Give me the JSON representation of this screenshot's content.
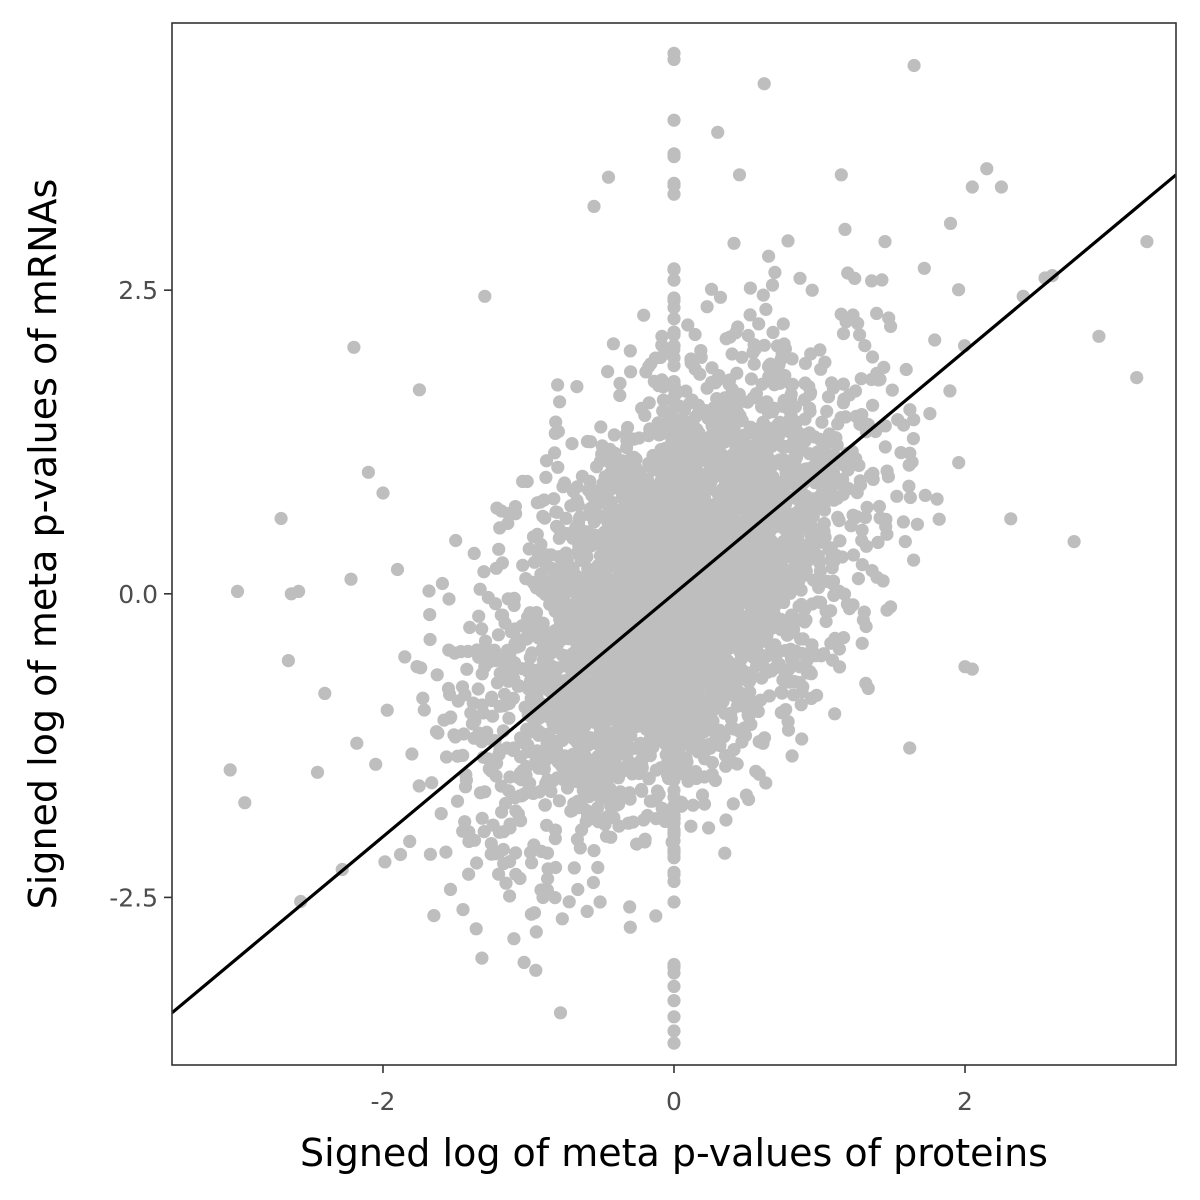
{
  "chart_data": {
    "type": "scatter",
    "title": "",
    "xlabel": "Signed log of meta p-values of proteins",
    "ylabel": "Signed log of meta p-values of mRNAs",
    "xlim": [
      -3.45,
      3.45
    ],
    "ylim": [
      -3.88,
      4.7
    ],
    "x_ticks": [
      -2,
      0,
      2
    ],
    "x_tick_labels": [
      "-2",
      "0",
      "2"
    ],
    "y_ticks": [
      -2.5,
      0.0,
      2.5
    ],
    "y_tick_labels": [
      "-2.5",
      "0.0",
      "2.5"
    ],
    "grid": false,
    "point_color": "#bebebe",
    "line_color": "#000000",
    "fit_line": {
      "slope": 1.0,
      "intercept": 0.0
    },
    "point_count_rendered": 4000,
    "points_outliers": {
      "x": [
        -3.0,
        -2.95,
        -3.05,
        -2.7,
        -2.63,
        -2.65,
        -2.58,
        -2.4,
        -2.45,
        -2.28,
        -2.18,
        -2.2,
        -2.1,
        -2.0,
        -1.9,
        -1.85,
        -1.75,
        -1.65,
        -1.55,
        -1.45,
        -1.32,
        -1.3,
        -1.1,
        -0.95,
        -0.9,
        -0.78,
        -0.8,
        -0.55,
        -0.45,
        -0.3,
        0.0,
        0.0,
        0.0,
        0.0,
        0.0,
        0.0,
        0.0,
        0.3,
        0.45,
        0.62,
        0.65,
        0.95,
        1.15,
        1.45,
        1.65,
        1.72,
        1.9,
        2.05,
        2.15,
        2.25,
        2.4,
        2.55,
        2.6,
        2.75,
        2.92,
        3.18,
        3.25,
        2.0,
        2.05,
        1.62,
        -2.22,
        -1.3
      ],
      "y": [
        0.02,
        -1.72,
        -1.45,
        0.62,
        0.0,
        -0.55,
        0.02,
        -0.82,
        -1.47,
        -2.27,
        -1.23,
        2.03,
        1.0,
        0.83,
        0.2,
        -0.52,
        1.68,
        -2.65,
        -0.78,
        -2.6,
        -3.0,
        2.45,
        -2.84,
        -3.1,
        -2.5,
        -3.45,
        1.72,
        3.19,
        3.43,
        2.0,
        4.45,
        4.4,
        3.9,
        3.6,
        -3.7,
        -3.6,
        -3.35,
        3.8,
        3.45,
        4.2,
        2.78,
        2.5,
        3.45,
        2.9,
        4.35,
        2.68,
        3.05,
        3.35,
        3.5,
        3.35,
        2.45,
        2.6,
        2.62,
        0.43,
        2.12,
        1.78,
        2.9,
        -0.6,
        -0.62,
        -1.27,
        0.12,
        -0.6
      ]
    }
  }
}
